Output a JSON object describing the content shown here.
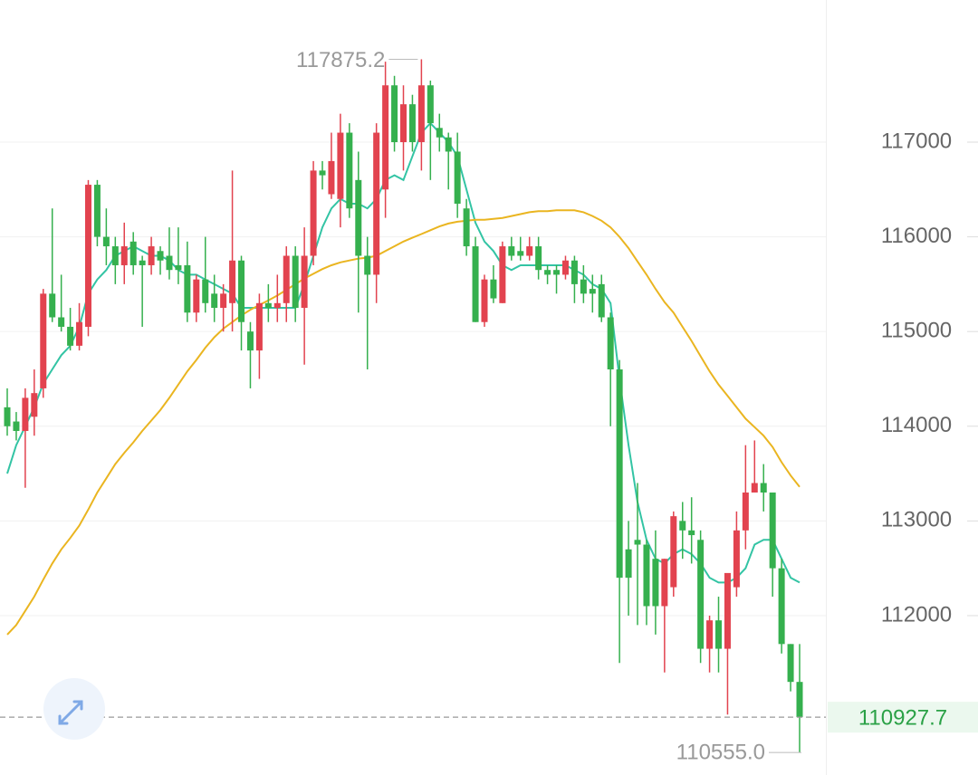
{
  "chart_data": {
    "type": "candlestick",
    "up_color": "#e2434f",
    "down_color": "#35b04e",
    "open": [
      114200,
      114050,
      113950,
      114100,
      114400,
      115400,
      115150,
      115050,
      114850,
      115050,
      116550,
      116000,
      115900,
      115700,
      115950,
      115750,
      115700,
      115850,
      115800,
      115700,
      115700,
      115200,
      115550,
      115400,
      115250,
      115300,
      115750,
      115000,
      114800,
      115300,
      115250,
      115300,
      115800,
      115250,
      115800,
      116700,
      116450,
      116400,
      117100,
      116600,
      115800,
      115600,
      116500,
      117600,
      117000,
      117400,
      117000,
      117600,
      117150,
      117050,
      116900,
      116300,
      115900,
      115100,
      115550,
      115300,
      115900,
      115850,
      115800,
      115900,
      115650,
      115650,
      115600,
      115750,
      115550,
      115450,
      115500,
      115150,
      114600,
      112700,
      112800,
      112750,
      112600,
      112100,
      112300,
      113000,
      112900,
      112800,
      111650,
      111950,
      111650,
      112300,
      112900,
      113300,
      113400,
      113300,
      112500,
      111700,
      111300
    ],
    "high": [
      114400,
      114150,
      114400,
      114600,
      115450,
      116300,
      115600,
      115250,
      115300,
      116600,
      116600,
      116300,
      116000,
      116150,
      116050,
      115800,
      116000,
      115900,
      116100,
      116100,
      115950,
      115600,
      116000,
      115600,
      115500,
      116700,
      115800,
      115100,
      115400,
      115500,
      115600,
      115900,
      115900,
      116100,
      116800,
      116800,
      117100,
      117300,
      117200,
      116900,
      116000,
      117200,
      117850,
      117700,
      117600,
      117500,
      117875.2,
      117650,
      117300,
      117100,
      117100,
      116400,
      116000,
      115600,
      115700,
      115950,
      116000,
      116000,
      116000,
      116000,
      115700,
      115700,
      115800,
      115800,
      115700,
      115600,
      115600,
      115200,
      114700,
      113000,
      113400,
      112800,
      112900,
      112600,
      113100,
      113200,
      113250,
      112900,
      112000,
      112200,
      112400,
      113100,
      113800,
      113850,
      113600,
      113300,
      112600,
      111700,
      111700
    ],
    "low": [
      113900,
      113850,
      113350,
      113900,
      114300,
      115100,
      115000,
      114800,
      114800,
      114950,
      115900,
      115700,
      115500,
      115500,
      115600,
      115050,
      115600,
      115600,
      115550,
      115500,
      115100,
      115100,
      115200,
      115100,
      115000,
      115000,
      114800,
      114400,
      114500,
      115100,
      115100,
      115100,
      115100,
      114650,
      115700,
      116500,
      116400,
      116100,
      116200,
      115200,
      114600,
      115300,
      116200,
      116900,
      116700,
      116900,
      116700,
      116600,
      116900,
      116500,
      116200,
      115800,
      115100,
      115050,
      115300,
      115300,
      115750,
      115750,
      115750,
      115550,
      115500,
      115400,
      115550,
      115300,
      115300,
      115200,
      115100,
      114000,
      111500,
      112000,
      111900,
      111900,
      111800,
      111400,
      112200,
      112600,
      112550,
      111500,
      111400,
      111400,
      110955,
      112200,
      112700,
      113300,
      113100,
      112200,
      111600,
      111200,
      110555
    ],
    "close": [
      114000,
      113950,
      114300,
      114350,
      115400,
      115150,
      115050,
      114850,
      115100,
      116550,
      116000,
      115900,
      115700,
      115900,
      115700,
      115700,
      115900,
      115750,
      115650,
      115650,
      115200,
      115550,
      115300,
      115250,
      115400,
      115750,
      115100,
      114800,
      115300,
      115250,
      115300,
      115800,
      115250,
      115800,
      116700,
      116650,
      116800,
      117100,
      116300,
      115800,
      115600,
      117100,
      117600,
      117000,
      117400,
      117000,
      117600,
      117200,
      117050,
      116900,
      116350,
      115900,
      115100,
      115550,
      115350,
      115900,
      115800,
      115800,
      115900,
      115650,
      115600,
      115600,
      115750,
      115500,
      115400,
      115400,
      115150,
      114600,
      112400,
      112400,
      112750,
      112100,
      112100,
      112600,
      113050,
      112900,
      112850,
      111650,
      111950,
      111650,
      112450,
      112900,
      113300,
      113400,
      113300,
      112500,
      111700,
      111300,
      110927.7
    ],
    "lines": [
      {
        "color": "#33c4a4",
        "values": [
          113500,
          113800,
          114000,
          114200,
          114450,
          114600,
          114750,
          114850,
          115050,
          115400,
          115550,
          115650,
          115800,
          115850,
          115900,
          115850,
          115800,
          115800,
          115750,
          115650,
          115600,
          115600,
          115550,
          115500,
          115450,
          115400,
          115250,
          115250,
          115250,
          115250,
          115250,
          115250,
          115250,
          115500,
          115800,
          116100,
          116300,
          116400,
          116350,
          116350,
          116300,
          116400,
          116600,
          116650,
          116600,
          116850,
          117100,
          117200,
          117100,
          117000,
          116850,
          116500,
          116150,
          115950,
          115850,
          115700,
          115650,
          115700,
          115700,
          115700,
          115700,
          115700,
          115700,
          115650,
          115600,
          115500,
          115450,
          115300,
          114500,
          113800,
          113200,
          112800,
          112600,
          112550,
          112650,
          112700,
          112650,
          112550,
          112400,
          112350,
          112350,
          112400,
          112500,
          112750,
          112800,
          112800,
          112600,
          112400,
          112350
        ]
      },
      {
        "color": "#eab520",
        "values": [
          111800,
          111900,
          112050,
          112200,
          112380,
          112550,
          112700,
          112820,
          112950,
          113120,
          113300,
          113450,
          113600,
          113720,
          113830,
          113950,
          114060,
          114170,
          114300,
          114440,
          114580,
          114700,
          114830,
          114940,
          115030,
          115100,
          115170,
          115230,
          115280,
          115330,
          115380,
          115440,
          115500,
          115560,
          115610,
          115660,
          115700,
          115730,
          115750,
          115770,
          115780,
          115800,
          115850,
          115900,
          115950,
          115990,
          116030,
          116070,
          116110,
          116140,
          116160,
          116170,
          116180,
          116180,
          116190,
          116200,
          116220,
          116240,
          116260,
          116270,
          116270,
          116280,
          116280,
          116280,
          116260,
          116220,
          116170,
          116100,
          116000,
          115880,
          115740,
          115600,
          115450,
          115310,
          115200,
          115050,
          114900,
          114740,
          114580,
          114440,
          114320,
          114200,
          114080,
          113990,
          113900,
          113780,
          113620,
          113480,
          113360
        ]
      }
    ],
    "ylim": [
      110317,
      118501
    ],
    "yticks": [
      112000,
      113000,
      114000,
      115000,
      116000,
      117000
    ],
    "grid": true,
    "annotations": {
      "max": 117875.2,
      "min": {
        "value": 110555,
        "label": "110555.0"
      },
      "last": 110927.7
    }
  }
}
